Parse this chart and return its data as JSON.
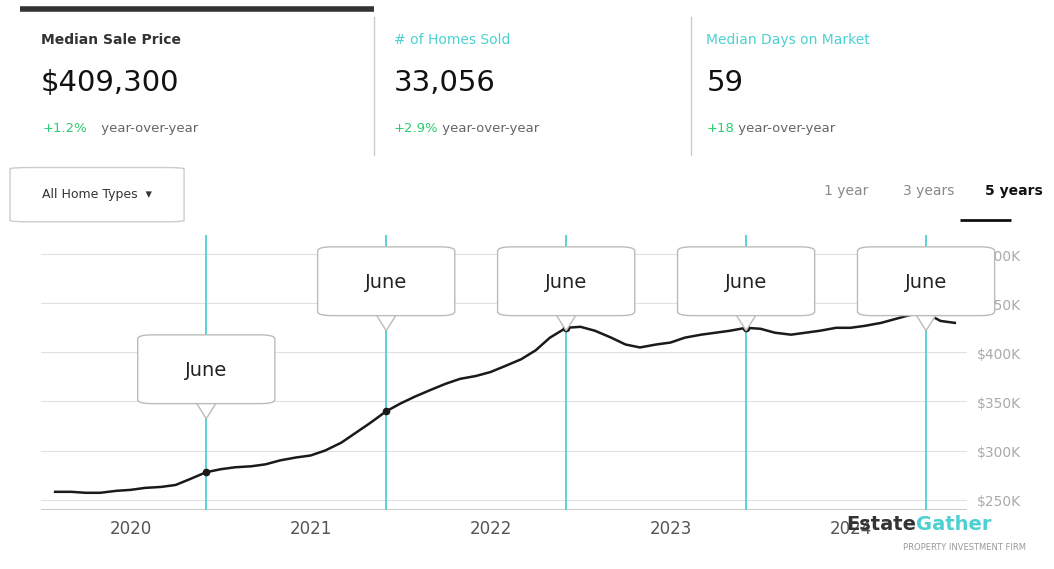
{
  "bg_color": "#ffffff",
  "line_color": "#1a1a1a",
  "grid_color": "#e0e0e0",
  "june_line_color": "#4dd0d0",
  "ylabel_color": "#aaaaaa",
  "stat_label_color": "#333333",
  "stat_value_color": "#111111",
  "stat_change_color": "#2ecc71",
  "homes_label_color": "#4dd0d0",
  "days_label_color": "#4dd0d0",
  "ylim": [
    240000,
    520000
  ],
  "yticks": [
    250000,
    300000,
    350000,
    400000,
    450000,
    500000
  ],
  "ytick_labels": [
    "$250K",
    "$300K",
    "$350K",
    "$400K",
    "$450K",
    "$500K"
  ],
  "june_lines_x": [
    2020.42,
    2021.42,
    2022.42,
    2023.42,
    2024.42
  ],
  "stats": {
    "median_sale_price": "$409,300",
    "median_yoy": "+1.2%",
    "homes_sold": "33,056",
    "homes_yoy": "+2.9%",
    "days_on_market": "59",
    "days_yoy": "+18"
  },
  "time_series": {
    "x": [
      2019.58,
      2019.67,
      2019.75,
      2019.83,
      2019.92,
      2020.0,
      2020.08,
      2020.17,
      2020.25,
      2020.33,
      2020.42,
      2020.5,
      2020.58,
      2020.67,
      2020.75,
      2020.83,
      2020.92,
      2021.0,
      2021.08,
      2021.17,
      2021.25,
      2021.33,
      2021.42,
      2021.5,
      2021.58,
      2021.67,
      2021.75,
      2021.83,
      2021.92,
      2022.0,
      2022.08,
      2022.17,
      2022.25,
      2022.33,
      2022.42,
      2022.5,
      2022.58,
      2022.67,
      2022.75,
      2022.83,
      2022.92,
      2023.0,
      2023.08,
      2023.17,
      2023.25,
      2023.33,
      2023.42,
      2023.5,
      2023.58,
      2023.67,
      2023.75,
      2023.83,
      2023.92,
      2024.0,
      2024.08,
      2024.17,
      2024.25,
      2024.33,
      2024.42,
      2024.5,
      2024.58
    ],
    "y": [
      258000,
      258000,
      257000,
      257000,
      259000,
      260000,
      262000,
      263000,
      265000,
      271000,
      278000,
      281000,
      283000,
      284000,
      286000,
      290000,
      293000,
      295000,
      300000,
      308000,
      318000,
      328000,
      340000,
      348000,
      355000,
      362000,
      368000,
      373000,
      376000,
      380000,
      386000,
      393000,
      402000,
      415000,
      425000,
      426000,
      422000,
      415000,
      408000,
      405000,
      408000,
      410000,
      415000,
      418000,
      420000,
      422000,
      425000,
      424000,
      420000,
      418000,
      420000,
      422000,
      425000,
      425000,
      427000,
      430000,
      434000,
      438000,
      440000,
      432000,
      430000
    ]
  }
}
